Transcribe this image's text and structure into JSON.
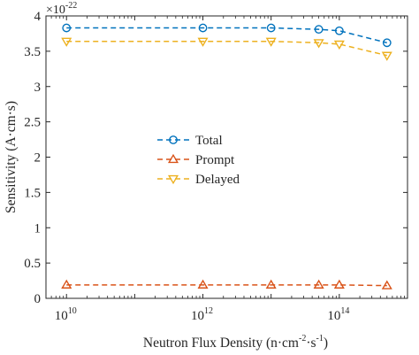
{
  "chart_data": {
    "type": "line",
    "xlabel": "Neutron Flux Density (n·cm⁻²·s⁻¹)",
    "xlabel_parts": {
      "prefix": "Neutron Flux Density (n·cm",
      "exp1": "-2",
      "mid": "·s",
      "exp2": "-1",
      "suffix": ")"
    },
    "ylabel": "Sensitivity (A·cm·s)",
    "y_exponent": {
      "base": "×10",
      "power": "-22"
    },
    "xscale": "log",
    "xlim": [
      5000000000.0,
      1000000000000000.0
    ],
    "ylim": [
      0,
      4
    ],
    "x_ticks": [
      {
        "value": 10000000000.0,
        "base": "10",
        "power": "10"
      },
      {
        "value": 1000000000000.0,
        "base": "10",
        "power": "12"
      },
      {
        "value": 100000000000000.0,
        "base": "10",
        "power": "14"
      }
    ],
    "y_ticks": [
      {
        "value": 0,
        "label": "0"
      },
      {
        "value": 0.5,
        "label": "0.5"
      },
      {
        "value": 1,
        "label": "1"
      },
      {
        "value": 1.5,
        "label": "1.5"
      },
      {
        "value": 2,
        "label": "2"
      },
      {
        "value": 2.5,
        "label": "2.5"
      },
      {
        "value": 3,
        "label": "3"
      },
      {
        "value": 3.5,
        "label": "3.5"
      },
      {
        "value": 4,
        "label": "4"
      }
    ],
    "x": [
      10000000000.0,
      1000000000000.0,
      10000000000000.0,
      50000000000000.0,
      100000000000000.0,
      500000000000000.0
    ],
    "series": [
      {
        "name": "Total",
        "values": [
          3.83,
          3.83,
          3.83,
          3.81,
          3.79,
          3.62
        ],
        "color": "#0072bd",
        "marker": "circle"
      },
      {
        "name": "Prompt",
        "values": [
          0.19,
          0.19,
          0.19,
          0.19,
          0.19,
          0.18
        ],
        "color": "#d95319",
        "marker": "triangle-up"
      },
      {
        "name": "Delayed",
        "values": [
          3.64,
          3.64,
          3.64,
          3.62,
          3.6,
          3.44
        ],
        "color": "#edb120",
        "marker": "triangle-down"
      }
    ],
    "grid": false,
    "legend_position": "center"
  }
}
